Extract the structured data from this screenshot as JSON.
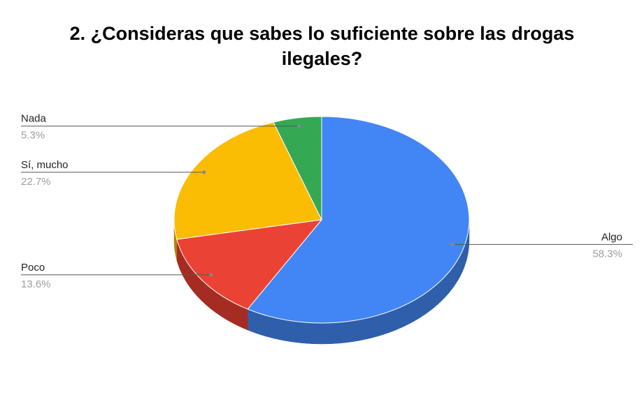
{
  "chart_data": {
    "type": "pie",
    "title_lines": [
      "2. ¿Consideras que sabes lo suficiente sobre las drogas",
      "ilegales?"
    ],
    "slices": [
      {
        "label": "Algo",
        "value": 58.3,
        "value_text": "58.3%",
        "color": "#4285f4",
        "side_color": "#2f5fab"
      },
      {
        "label": "Poco",
        "value": 13.6,
        "value_text": "13.6%",
        "color": "#ea4335",
        "side_color": "#a52c22"
      },
      {
        "label": "Sí, mucho",
        "value": 22.7,
        "value_text": "22.7%",
        "color": "#fbbc04",
        "side_color": "#b38600"
      },
      {
        "label": "Nada",
        "value": 5.3,
        "value_text": "5.3%",
        "color": "#34a853",
        "side_color": "#24773a"
      }
    ],
    "style": "3d",
    "legend": "none"
  }
}
